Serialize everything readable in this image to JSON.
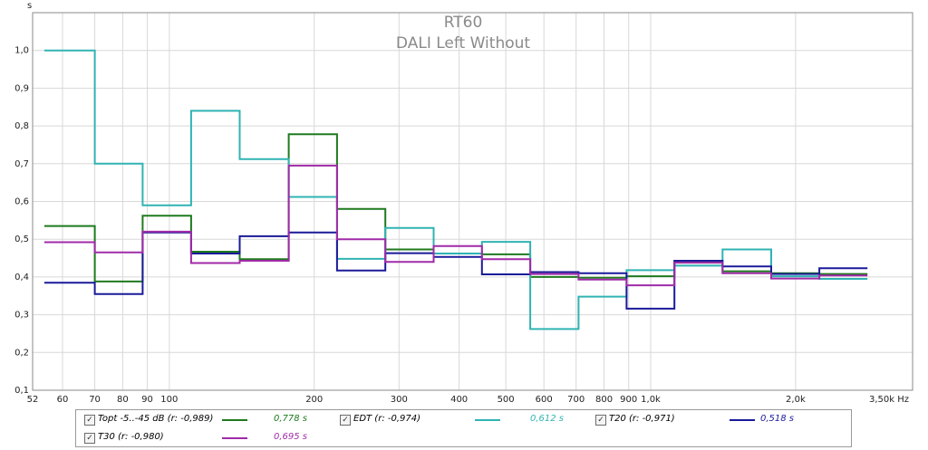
{
  "chart_data": {
    "type": "line",
    "title": "RT60",
    "subtitle": "DALI Left Without",
    "ylabel": "s",
    "xlabel": "Hz",
    "xscale": "log",
    "xlim": [
      52,
      3500
    ],
    "ylim": [
      0.1,
      1.1
    ],
    "x_ticks": [
      52,
      60,
      70,
      80,
      90,
      100,
      200,
      300,
      400,
      500,
      600,
      700,
      800,
      900,
      1000,
      2000,
      3500
    ],
    "x_tick_labels": [
      "52",
      "60",
      "70",
      "80",
      "90",
      "100",
      "200",
      "300",
      "400",
      "500",
      "600",
      "700",
      "800",
      "900",
      "1,0k",
      "2,0k",
      "3,50k Hz"
    ],
    "y_ticks": [
      0.1,
      0.2,
      0.3,
      0.4,
      0.5,
      0.6,
      0.7,
      0.8,
      0.9,
      1.0
    ],
    "y_tick_labels": [
      "0,1",
      "0,2",
      "0,3",
      "0,4",
      "0,5",
      "0,6",
      "0,7",
      "0,8",
      "0,9",
      "1,0"
    ],
    "grid": true,
    "band_edges": [
      55,
      70,
      88,
      111,
      140,
      177,
      223,
      281,
      354,
      446,
      562,
      708,
      891,
      1120,
      1410,
      1780,
      2240,
      2820
    ],
    "series": [
      {
        "name": "Topt -5..-45 dB (r: -0,989)",
        "color": "#1e7a1e",
        "value_label": "0,778 s",
        "values": [
          0.535,
          0.388,
          0.562,
          0.467,
          0.447,
          0.778,
          0.58,
          0.473,
          0.462,
          0.46,
          0.4,
          0.398,
          0.402,
          0.44,
          0.415,
          0.41,
          0.408
        ]
      },
      {
        "name": "EDT (r: -0,974)",
        "color": "#30b3b3",
        "value_label": "0,612 s",
        "values": [
          1.0,
          0.7,
          0.59,
          0.84,
          0.712,
          0.612,
          0.448,
          0.53,
          0.462,
          0.493,
          0.262,
          0.348,
          0.418,
          0.43,
          0.473,
          0.402,
          0.395
        ]
      },
      {
        "name": "T20 (r: -0,971)",
        "color": "#1a1a9a",
        "value_label": "0,518 s",
        "values": [
          0.385,
          0.355,
          0.518,
          0.462,
          0.508,
          0.518,
          0.417,
          0.463,
          0.453,
          0.407,
          0.413,
          0.41,
          0.316,
          0.443,
          0.428,
          0.408,
          0.423
        ]
      },
      {
        "name": "T30 (r: -0,980)",
        "color": "#a02aa8",
        "value_label": "0,695 s",
        "values": [
          0.492,
          0.465,
          0.52,
          0.437,
          0.443,
          0.695,
          0.5,
          0.44,
          0.482,
          0.447,
          0.408,
          0.393,
          0.378,
          0.438,
          0.41,
          0.396,
          0.404
        ]
      }
    ]
  },
  "legend": {
    "checkbox_mark": "✓"
  }
}
